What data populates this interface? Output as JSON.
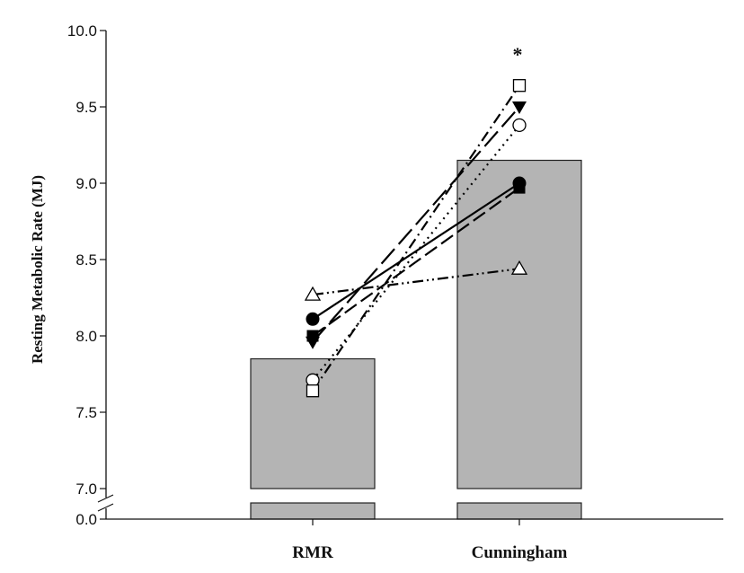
{
  "chart_data": {
    "type": "bar",
    "ylabel": "Resting Metabolic Rate (MJ)",
    "categories": [
      "RMR",
      "Cunningham"
    ],
    "bar_values": [
      7.85,
      9.15
    ],
    "ylim": [
      7.0,
      10.0
    ],
    "y_ticks": [
      "10.0",
      "9.5",
      "9.0",
      "8.5",
      "8.0",
      "7.5",
      "7.0"
    ],
    "y_tick_values": [
      10.0,
      9.5,
      9.0,
      8.5,
      8.0,
      7.5,
      7.0
    ],
    "broken_axis_lower_tick": "0.0",
    "bar_color": "#b4b4b4",
    "annotation": "*",
    "grid": false,
    "individual_series": [
      {
        "marker": "circle-filled",
        "line": "solid",
        "values": [
          8.11,
          9.0
        ]
      },
      {
        "marker": "square-filled",
        "line": "dash",
        "values": [
          8.0,
          8.97
        ]
      },
      {
        "marker": "triangle-down",
        "line": "long-dash",
        "values": [
          7.96,
          9.5
        ]
      },
      {
        "marker": "circle-open",
        "line": "dot",
        "values": [
          7.71,
          9.38
        ]
      },
      {
        "marker": "square-open",
        "line": "dash-dot",
        "values": [
          7.64,
          9.64
        ]
      },
      {
        "marker": "triangle-up-open",
        "line": "dash-dot-dot",
        "values": [
          8.27,
          8.44
        ]
      }
    ]
  }
}
